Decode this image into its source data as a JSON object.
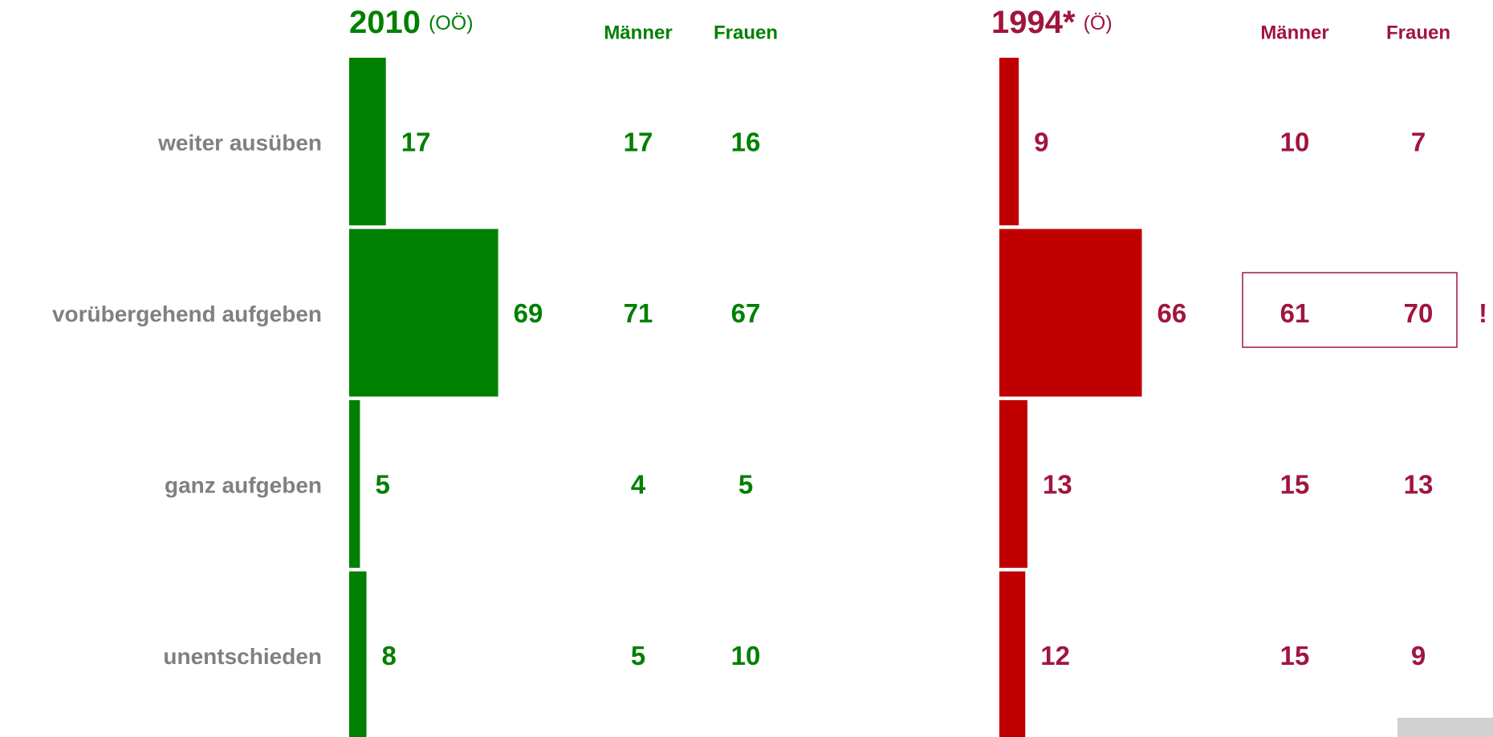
{
  "chart_data": [
    {
      "type": "bar",
      "title": "2010",
      "subtitle": "(OÖ)",
      "categories": [
        "weiter ausüben",
        "vorübergehend aufgeben",
        "ganz aufgeben",
        "unentschieden"
      ],
      "values": [
        17,
        69,
        5,
        8
      ],
      "color": "#008000",
      "text_color": "#008000",
      "columns": [
        {
          "name": "Männer",
          "values": [
            17,
            71,
            4,
            5
          ]
        },
        {
          "name": "Frauen",
          "values": [
            16,
            67,
            5,
            10
          ]
        }
      ]
    },
    {
      "type": "bar",
      "title": "1994*",
      "subtitle": "(Ö)",
      "values": [
        9,
        66,
        13,
        12
      ],
      "color": "#c00000",
      "text_color": "#a0153e",
      "columns": [
        {
          "name": "Männer",
          "values": [
            10,
            61,
            15,
            15
          ]
        },
        {
          "name": "Frauen",
          "values": [
            7,
            70,
            13,
            9
          ]
        }
      ],
      "annotation": "!"
    }
  ]
}
